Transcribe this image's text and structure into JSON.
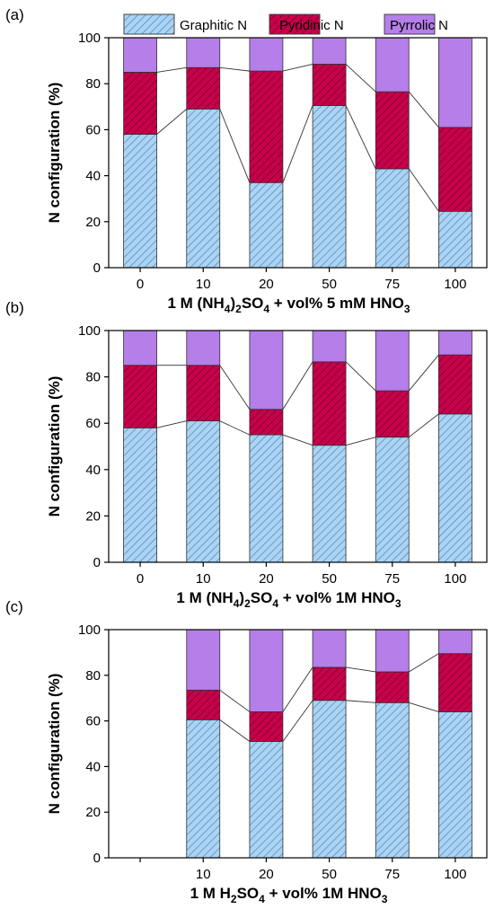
{
  "legend": {
    "items": [
      {
        "label": "Graphitic N",
        "color": "#a9d4f5",
        "hatch": true
      },
      {
        "label": "Pyridinic N",
        "color": "#c8004b",
        "hatch": true
      },
      {
        "label": "Pyrrolic N",
        "color": "#b57ee8",
        "hatch": false
      }
    ]
  },
  "colors": {
    "graphitic": "#a9d4f5",
    "pyridinic": "#c8004b",
    "pyrrolic": "#b57ee8",
    "hatch_graphitic": "#5b7fa8",
    "hatch_pyridinic": "#6a0026",
    "connector": "#333333"
  },
  "chart_data": [
    {
      "type": "bar",
      "stacked": true,
      "panel_label": "(a)",
      "ylabel": "N configuration (%)",
      "xlabel": {
        "pre": "1 M (NH",
        "sub1": "4",
        "mid": ")",
        "sub2": "2",
        "mid2": "SO",
        "sub3": "4",
        "post": " + vol% 5 mM HNO",
        "sub4": "3"
      },
      "ylim": [
        0,
        100
      ],
      "yticks": [
        0,
        20,
        40,
        60,
        80,
        100
      ],
      "categories": [
        "0",
        "10",
        "20",
        "50",
        "75",
        "100"
      ],
      "series": [
        {
          "name": "Graphitic N",
          "values": [
            58,
            69,
            37,
            70.5,
            43,
            24.5
          ]
        },
        {
          "name": "Pyridinic N",
          "values": [
            27,
            18,
            48.5,
            18,
            33.5,
            36.5
          ]
        },
        {
          "name": "Pyrrolic N",
          "values": [
            15,
            13,
            14.5,
            11.5,
            23.5,
            39
          ]
        }
      ]
    },
    {
      "type": "bar",
      "stacked": true,
      "panel_label": "(b)",
      "ylabel": "N configuration (%)",
      "xlabel": {
        "pre": "1 M (NH",
        "sub1": "4",
        "mid": ")",
        "sub2": "2",
        "mid2": "SO",
        "sub3": "4",
        "post": " + vol% 1M HNO",
        "sub4": "3"
      },
      "ylim": [
        0,
        100
      ],
      "yticks": [
        0,
        20,
        40,
        60,
        80,
        100
      ],
      "categories": [
        "0",
        "10",
        "20",
        "50",
        "75",
        "100"
      ],
      "series": [
        {
          "name": "Graphitic N",
          "values": [
            58,
            61,
            55,
            50.5,
            54,
            64
          ]
        },
        {
          "name": "Pyridinic N",
          "values": [
            27,
            24,
            11,
            36,
            20,
            25.5
          ]
        },
        {
          "name": "Pyrrolic N",
          "values": [
            15,
            15,
            34,
            13.5,
            26,
            10.5
          ]
        }
      ]
    },
    {
      "type": "bar",
      "stacked": true,
      "panel_label": "(c)",
      "ylabel": "N configuration (%)",
      "xlabel": {
        "pre": "1 M H",
        "sub1": "2",
        "mid": "SO",
        "sub2": "4",
        "mid2": "",
        "sub3": "",
        "post": " + vol% 1M HNO",
        "sub4": "3"
      },
      "ylim": [
        0,
        100
      ],
      "yticks": [
        0,
        20,
        40,
        60,
        80,
        100
      ],
      "categories": [
        "",
        "10",
        "20",
        "50",
        "75",
        "100"
      ],
      "series": [
        {
          "name": "Graphitic N",
          "values": [
            null,
            60.5,
            51,
            69,
            68,
            64
          ]
        },
        {
          "name": "Pyridinic N",
          "values": [
            null,
            13,
            13,
            14.5,
            13.5,
            25.5
          ]
        },
        {
          "name": "Pyrrolic N",
          "values": [
            null,
            26.5,
            36,
            16.5,
            18.5,
            10.5
          ]
        }
      ]
    }
  ]
}
